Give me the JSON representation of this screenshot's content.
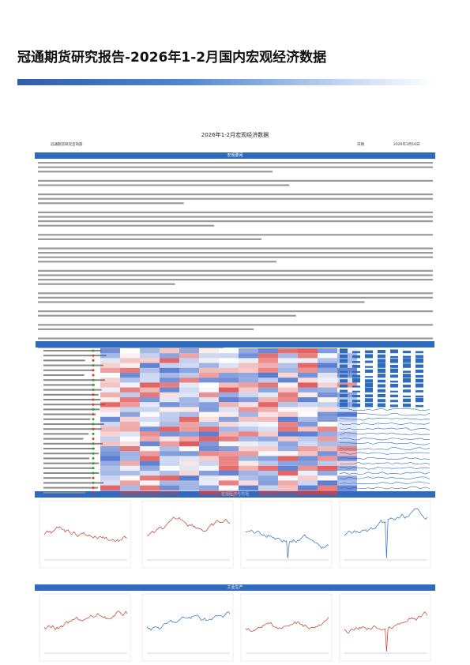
{
  "header": {
    "title": "冠通期货研究报告-2026年1-2月国内宏观经济数据"
  },
  "report": {
    "title": "2026年1-2月宏观经济数据",
    "department": "冠通期货研究咨询部",
    "date_label": "日期",
    "date": "2026年3月16日"
  },
  "sections": [
    "宏观要闻",
    "宏观经济与市场",
    "工业生产"
  ]
}
